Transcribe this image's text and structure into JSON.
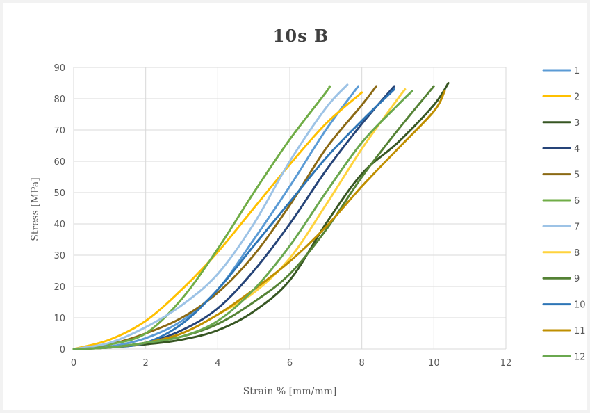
{
  "chart_data": {
    "type": "line",
    "title": "10s B",
    "xlabel": "Strain % [mm/mm]",
    "ylabel": "Stress [MPa]",
    "xlim": [
      0,
      12
    ],
    "ylim": [
      0,
      90
    ],
    "xticks": [
      0,
      2,
      4,
      6,
      8,
      10,
      12
    ],
    "yticks": [
      0,
      10,
      20,
      30,
      40,
      50,
      60,
      70,
      80,
      90
    ],
    "grid": true,
    "legend_position": "right",
    "series": [
      {
        "name": "1",
        "color": "#5b9bd5",
        "x": [
          0,
          1,
          2,
          3,
          4,
          5,
          6,
          7,
          7.9
        ],
        "y": [
          0,
          0.8,
          3.5,
          9,
          19,
          35,
          52,
          70,
          84
        ]
      },
      {
        "name": "2",
        "color": "#ffc000",
        "x": [
          0,
          1,
          2,
          3,
          4,
          5,
          6,
          7,
          8
        ],
        "y": [
          0,
          3,
          9,
          19,
          31,
          45,
          59,
          72,
          82
        ]
      },
      {
        "name": "3",
        "color": "#375623",
        "x": [
          0,
          1,
          2,
          3,
          4,
          5,
          6,
          7,
          8,
          9,
          10,
          10.4
        ],
        "y": [
          0,
          0.5,
          1.5,
          3,
          6,
          12,
          22,
          40,
          56,
          66,
          78,
          85
        ]
      },
      {
        "name": "4",
        "color": "#264478",
        "x": [
          0,
          1,
          2,
          3,
          4,
          5,
          6,
          7,
          8,
          8.9
        ],
        "y": [
          0,
          0.5,
          2,
          6,
          13,
          25,
          40,
          57,
          72,
          84
        ]
      },
      {
        "name": "5",
        "color": "#8b6914",
        "x": [
          0,
          1,
          2,
          3,
          4,
          5,
          6,
          7,
          8,
          8.4
        ],
        "y": [
          0,
          1.5,
          5,
          10,
          18,
          30,
          46,
          64,
          78,
          84
        ]
      },
      {
        "name": "6",
        "color": "#70ad47",
        "x": [
          0,
          1,
          2,
          3,
          4,
          5,
          6,
          7,
          7.1
        ],
        "y": [
          0,
          1.5,
          5,
          16,
          32,
          50,
          67,
          82,
          84
        ]
      },
      {
        "name": "7",
        "color": "#9dc3e6",
        "x": [
          0,
          1,
          2,
          3,
          4,
          5,
          6,
          7,
          7.6
        ],
        "y": [
          0,
          2,
          7,
          14,
          24,
          40,
          60,
          77,
          84.5
        ]
      },
      {
        "name": "8",
        "color": "#ffd33d",
        "x": [
          0,
          1,
          2,
          3,
          4,
          5,
          6,
          7,
          8,
          9,
          9.2
        ],
        "y": [
          0,
          0.5,
          2,
          5,
          11,
          18,
          29,
          46,
          64,
          80,
          83
        ]
      },
      {
        "name": "9",
        "color": "#548235",
        "x": [
          0,
          1,
          2,
          3,
          4,
          5,
          6,
          7,
          8,
          9,
          10
        ],
        "y": [
          0,
          0.5,
          2,
          4,
          8,
          15,
          24,
          38,
          55,
          70,
          84
        ]
      },
      {
        "name": "10",
        "color": "#2e75b6",
        "x": [
          0,
          1,
          2,
          3,
          4,
          5,
          6,
          7,
          8,
          8.9
        ],
        "y": [
          0,
          0.5,
          2,
          8,
          19,
          33,
          47,
          61,
          73,
          83
        ]
      },
      {
        "name": "11",
        "color": "#bf8f00",
        "x": [
          0,
          1,
          2,
          3,
          4,
          5,
          6,
          7,
          8,
          9,
          10,
          10.3
        ],
        "y": [
          0,
          0.5,
          2,
          5,
          11,
          19,
          28,
          39,
          52,
          64,
          76,
          82.5
        ]
      },
      {
        "name": "12",
        "color": "#6aa84f",
        "x": [
          0,
          1,
          2,
          3,
          4,
          5,
          6,
          7,
          8,
          9,
          9.4
        ],
        "y": [
          0,
          0.5,
          2,
          4,
          9,
          19,
          33,
          50,
          66,
          78,
          82.5
        ]
      }
    ]
  }
}
